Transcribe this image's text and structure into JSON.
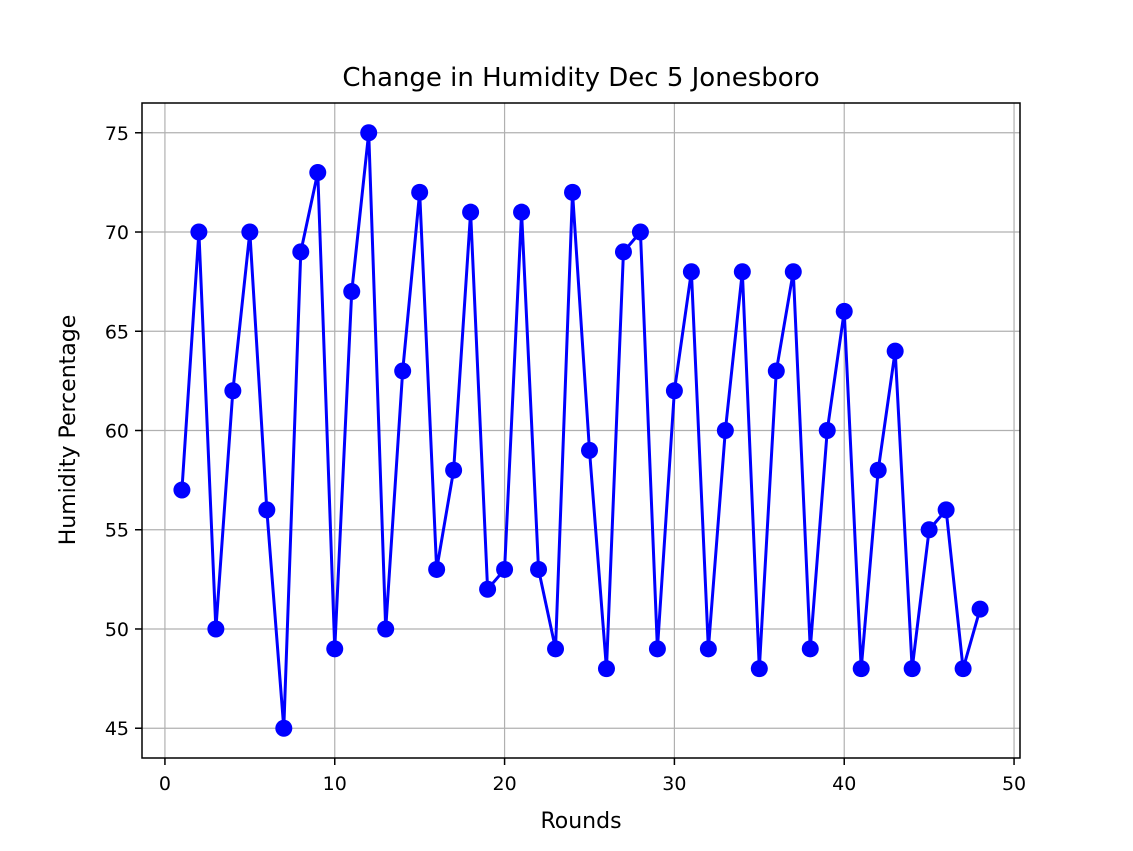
{
  "chart_data": {
    "type": "line",
    "title": "Change in Humidity Dec 5 Jonesboro",
    "xlabel": "Rounds",
    "ylabel": "Humidity Percentage",
    "xlim": [
      -1.35,
      50.35
    ],
    "ylim": [
      43.5,
      76.5
    ],
    "xticks": [
      0,
      10,
      20,
      30,
      40,
      50
    ],
    "yticks": [
      45,
      50,
      55,
      60,
      65,
      70,
      75
    ],
    "grid": true,
    "color": "#0000ff",
    "marker": "circle",
    "series": [
      {
        "x": [
          1,
          2,
          3,
          4,
          5,
          6,
          7,
          8,
          9,
          10,
          11,
          12,
          13,
          14,
          15,
          16,
          17,
          18,
          19,
          20,
          21,
          22,
          23,
          24,
          25,
          26,
          27,
          28,
          29,
          30,
          31,
          32,
          33,
          34,
          35,
          36,
          37,
          38,
          39,
          40,
          41,
          42,
          43,
          44,
          45,
          46,
          47,
          48
        ],
        "values": [
          57,
          70,
          50,
          62,
          70,
          56,
          45,
          69,
          73,
          49,
          67,
          75,
          50,
          63,
          72,
          53,
          58,
          71,
          52,
          53,
          71,
          53,
          49,
          72,
          59,
          48,
          69,
          70,
          49,
          62,
          68,
          49,
          60,
          68,
          48,
          63,
          68,
          49,
          60,
          66,
          48,
          58,
          64,
          48,
          55,
          56,
          48,
          51
        ]
      }
    ]
  }
}
